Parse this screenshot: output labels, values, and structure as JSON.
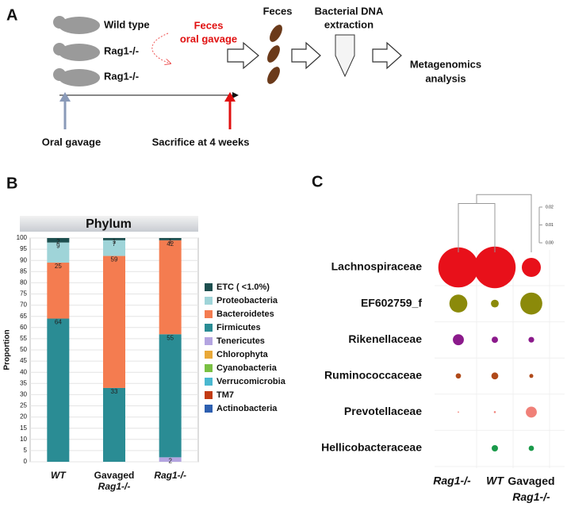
{
  "panel_a": {
    "label": "A",
    "mice": [
      "Wild type",
      "Rag1-/-",
      "Rag1-/-"
    ],
    "gavage_note": [
      "Feces",
      "oral gavage"
    ],
    "steps": [
      [
        "Feces"
      ],
      [
        "Bacterial DNA",
        "extraction"
      ],
      [
        "Metagenomics",
        "analysis"
      ]
    ],
    "timeline": [
      "Oral gavage",
      "Sacrifice at 4 weeks"
    ]
  },
  "chart_data": [
    {
      "type": "bar",
      "stacked": true,
      "panel": "B",
      "title": "Phylum",
      "y_label": "Proportion",
      "categories": [
        "WT",
        "Gavaged Rag1-/-",
        "Rag1-/-"
      ],
      "ylim": [
        0,
        100
      ],
      "yticks": [
        0,
        5,
        10,
        15,
        20,
        25,
        30,
        35,
        40,
        45,
        50,
        55,
        60,
        65,
        70,
        75,
        80,
        85,
        90,
        95,
        100
      ],
      "grid": true,
      "series": [
        {
          "name": "ETC ( <1.0%)",
          "color": "#1d4f4f",
          "values": [
            2,
            1,
            1
          ]
        },
        {
          "name": "Proteobacteria",
          "color": "#9fd4d8",
          "values": [
            9,
            7,
            0
          ]
        },
        {
          "name": "Bacteroidetes",
          "color": "#f47c50",
          "values": [
            25,
            59,
            42
          ]
        },
        {
          "name": "Firmicutes",
          "color": "#2a8c94",
          "values": [
            64,
            33,
            55
          ]
        },
        {
          "name": "Tenericutes",
          "color": "#b3a4e0",
          "values": [
            0,
            0,
            2
          ]
        },
        {
          "name": "Chlorophyta",
          "color": "#e8a838",
          "values": [
            0,
            0,
            0
          ]
        },
        {
          "name": "Cyanobacteria",
          "color": "#7ac043",
          "values": [
            0,
            0,
            0
          ]
        },
        {
          "name": "Verrucomicrobia",
          "color": "#4ab8d0",
          "values": [
            0,
            0,
            0
          ]
        },
        {
          "name": "TM7",
          "color": "#c23b12",
          "values": [
            0,
            0,
            0
          ]
        },
        {
          "name": "Actinobacteria",
          "color": "#2d5fb0",
          "values": [
            0,
            0,
            0
          ]
        }
      ]
    },
    {
      "type": "bubble",
      "panel": "C",
      "categories": [
        "Rag1-/-",
        "WT",
        "Gavaged Rag1-/-"
      ],
      "tree": {
        "ylim": [
          0,
          0.02
        ],
        "yticks": [
          {
            "value": 0,
            "label": "0.00"
          },
          {
            "value": 0.01,
            "label": "0.01"
          },
          {
            "value": 0.02,
            "label": "0.02"
          }
        ],
        "merge_heights": [
          0.022,
          0.027
        ]
      },
      "series": [
        {
          "name": "Lachnospiraceae",
          "color": "#e8101a",
          "values": [
            40,
            43,
            9
          ]
        },
        {
          "name": "EF602759_f",
          "color": "#8b8a0a",
          "values": [
            8,
            1.5,
            12
          ]
        },
        {
          "name": "Rikenellaceae",
          "color": "#8b1a8b",
          "values": [
            3,
            1,
            0.8
          ]
        },
        {
          "name": "Ruminococcaceae",
          "color": "#b04a1a",
          "values": [
            0.7,
            1.2,
            0.4
          ]
        },
        {
          "name": "Prevotellaceae",
          "color": "#f08078",
          "values": [
            0.05,
            0.1,
            3
          ]
        },
        {
          "name": "Hellicobacteraceae",
          "color": "#1a9a4a",
          "values": [
            0,
            1,
            0.7
          ]
        }
      ]
    }
  ]
}
